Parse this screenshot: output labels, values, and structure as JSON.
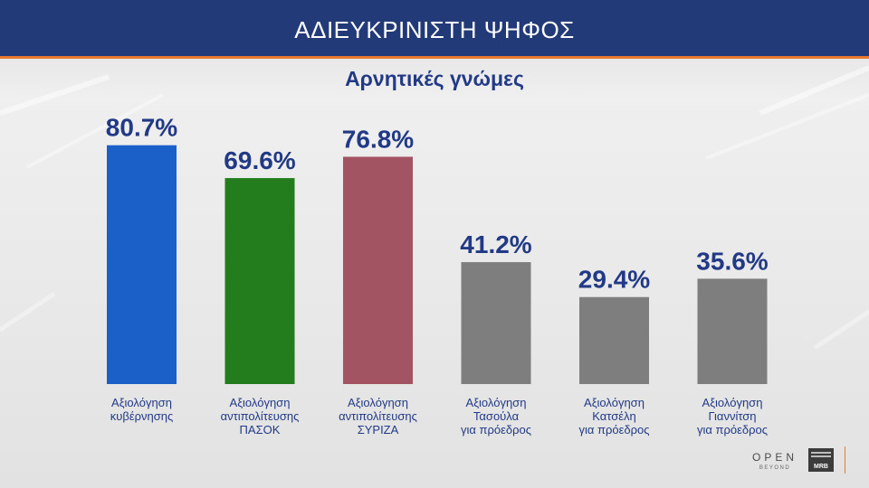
{
  "header": {
    "title": "ΑΔΙΕΥΚΡΙΝΙΣΤΗ ΨΗΦΟΣ"
  },
  "logos": {
    "open": "OPEN",
    "open_sub": "BEYOND",
    "mrb": "MRB"
  },
  "chart_data": {
    "type": "bar",
    "title": "Αρνητικές γνώμες",
    "categories": [
      [
        "Αξιολόγηση",
        "κυβέρνησης"
      ],
      [
        "Αξιολόγηση",
        "αντιπολίτευσης",
        "ΠΑΣΟΚ"
      ],
      [
        "Αξιολόγηση",
        "αντιπολίτευσης",
        "ΣΥΡΙΖΑ"
      ],
      [
        "Αξιολόγηση",
        "Τασούλα",
        "για πρόεδρος"
      ],
      [
        "Αξιολόγηση",
        "Κατσέλη",
        "για πρόεδρος"
      ],
      [
        "Αξιολόγηση",
        "Γιαννίτση",
        "για πρόεδρος"
      ]
    ],
    "values": [
      80.7,
      69.6,
      76.8,
      41.2,
      29.4,
      35.6
    ],
    "value_labels": [
      "80.7%",
      "69.6%",
      "76.8%",
      "41.2%",
      "29.4%",
      "35.6%"
    ],
    "colors": [
      "#1b5fc9",
      "#237d1c",
      "#a25462",
      "#7e7e7e",
      "#7e7e7e",
      "#7e7e7e"
    ],
    "ylim": [
      0,
      100
    ],
    "grid": false,
    "legend": "none"
  }
}
